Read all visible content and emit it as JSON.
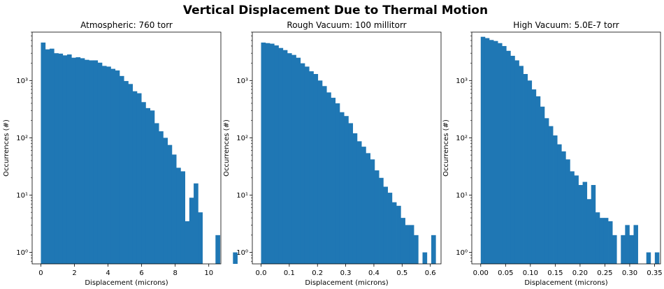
{
  "figure": {
    "suptitle": "Vertical Displacement Due to Thermal Motion",
    "bar_color": "#1f77b4"
  },
  "chart_data": [
    {
      "type": "bar",
      "title": "Atmospheric: 760 torr",
      "xlabel": "Displacement (microns)",
      "ylabel": "Occurrences (#)",
      "yscale": "log",
      "xlim": [
        -0.52,
        10.72
      ],
      "ylim": [
        0.63,
        7000
      ],
      "xticks": [
        0,
        2,
        4,
        6,
        8,
        10
      ],
      "xtick_labels": [
        "0",
        "2",
        "4",
        "6",
        "8",
        "10"
      ],
      "yticks": [
        1,
        10,
        100,
        1000
      ],
      "ytick_labels": [
        "10⁰",
        "10¹",
        "10²",
        "10³"
      ],
      "bin_start": 0.0,
      "bin_width": 0.26,
      "values": [
        4600,
        3500,
        3600,
        3000,
        2950,
        2750,
        2850,
        2500,
        2550,
        2450,
        2300,
        2250,
        2250,
        2050,
        1800,
        1750,
        1600,
        1500,
        1200,
        980,
        870,
        650,
        600,
        420,
        330,
        300,
        180,
        130,
        100,
        75,
        51,
        30,
        26,
        3.5,
        9,
        16,
        5,
        0,
        0,
        0,
        2,
        0,
        0,
        0,
        1
      ],
      "grid": false,
      "legend": "none"
    },
    {
      "type": "bar",
      "title": "Rough Vacuum: 100 millitorr",
      "xlabel": "Displacement (microns)",
      "ylabel": "Occurrences (#)",
      "yscale": "log",
      "xlim": [
        -0.031,
        0.638
      ],
      "ylim": [
        0.63,
        7000
      ],
      "xticks": [
        0.0,
        0.1,
        0.2,
        0.3,
        0.4,
        0.5,
        0.6
      ],
      "xtick_labels": [
        "0.0",
        "0.1",
        "0.2",
        "0.3",
        "0.4",
        "0.5",
        "0.6"
      ],
      "yticks": [
        1,
        10,
        100,
        1000
      ],
      "ytick_labels": [
        "10⁰",
        "10¹",
        "10²",
        "10³"
      ],
      "bin_start": 0.0,
      "bin_width": 0.01547,
      "values": [
        4600,
        4500,
        4400,
        4100,
        3700,
        3400,
        3000,
        2800,
        2500,
        2000,
        1750,
        1450,
        1300,
        1000,
        800,
        620,
        500,
        400,
        280,
        240,
        180,
        120,
        87,
        70,
        54,
        42,
        27,
        20,
        14,
        11,
        7.5,
        6.5,
        4,
        3,
        3,
        2,
        0,
        1,
        0,
        2
      ],
      "grid": false,
      "legend": "none"
    },
    {
      "type": "bar",
      "title": "High Vacuum: 5.0E-7 torr",
      "xlabel": "Displacement (microns)",
      "ylabel": "Occurrences (#)",
      "yscale": "log",
      "xlim": [
        -0.018,
        0.362
      ],
      "ylim": [
        0.63,
        7000
      ],
      "xticks": [
        0.0,
        0.05,
        0.1,
        0.15,
        0.2,
        0.25,
        0.3,
        0.35
      ],
      "xtick_labels": [
        "0.00",
        "0.05",
        "0.10",
        "0.15",
        "0.20",
        "0.25",
        "0.30",
        "0.35"
      ],
      "yticks": [
        1,
        10,
        100,
        1000
      ],
      "ytick_labels": [
        "10⁰",
        "10¹",
        "10²",
        "10³"
      ],
      "bin_start": 0.0,
      "bin_width": 0.00855,
      "values": [
        5800,
        5500,
        5100,
        4900,
        4500,
        4000,
        3300,
        2700,
        2250,
        1800,
        1300,
        1000,
        700,
        530,
        350,
        220,
        160,
        110,
        77,
        58,
        42,
        26,
        22,
        15,
        17,
        8.5,
        15,
        5,
        4,
        4,
        3.5,
        2,
        0,
        2,
        3,
        2,
        3,
        0,
        0,
        1,
        0,
        1
      ],
      "grid": false,
      "legend": "none"
    }
  ]
}
